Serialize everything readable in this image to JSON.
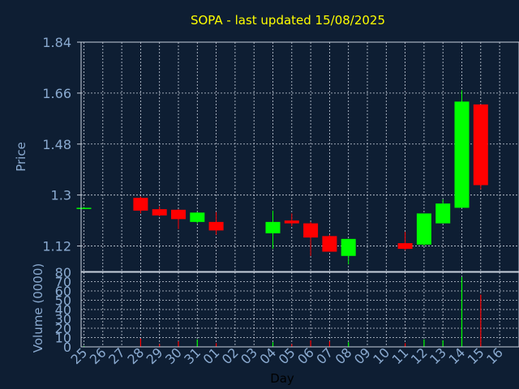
{
  "colors": {
    "background": "#0e1e33",
    "title": "#ffff00",
    "axis_label": "#8aaad0",
    "tick_label": "#8aaad0",
    "grid": "#c8d0dc",
    "frame": "#c8d0dc",
    "up": "#00ff00",
    "down": "#ff0000"
  },
  "chart_data": {
    "type": "candlestick",
    "title": "SOPA - last updated 15/08/2025",
    "xlabel": "Day",
    "ylabel": "Price",
    "volume_label": "Volume (0000)",
    "grid": true,
    "categories": [
      "25",
      "26",
      "27",
      "28",
      "29",
      "30",
      "31",
      "01",
      "02",
      "03",
      "04",
      "05",
      "06",
      "07",
      "08",
      "09",
      "10",
      "11",
      "12",
      "13",
      "14",
      "15",
      "16"
    ],
    "price_axis": {
      "ylim": [
        1.03,
        1.84
      ],
      "ticks": [
        "1.84",
        "1.66",
        "1.48",
        "1.3",
        "1.12"
      ],
      "tick_values": [
        1.84,
        1.66,
        1.48,
        1.3,
        1.12
      ]
    },
    "volume_axis": {
      "ylim": [
        0,
        80
      ],
      "ticks": [
        "80",
        "70",
        "60",
        "50",
        "40",
        "30",
        "20",
        "10",
        "0"
      ],
      "tick_values": [
        80,
        70,
        60,
        50,
        40,
        30,
        20,
        10,
        0
      ]
    },
    "candles": [
      {
        "day": "25",
        "open": 1.255,
        "high": 1.258,
        "low": 1.252,
        "close": 1.255,
        "volume": 1
      },
      {
        "day": "28",
        "open": 1.29,
        "high": 1.295,
        "low": 1.235,
        "close": 1.245,
        "volume": 9
      },
      {
        "day": "29",
        "open": 1.25,
        "high": 1.26,
        "low": 1.225,
        "close": 1.228,
        "volume": 3
      },
      {
        "day": "30",
        "open": 1.248,
        "high": 1.25,
        "low": 1.18,
        "close": 1.215,
        "volume": 6
      },
      {
        "day": "31",
        "open": 1.205,
        "high": 1.24,
        "low": 1.2,
        "close": 1.238,
        "volume": 8
      },
      {
        "day": "01",
        "open": 1.205,
        "high": 1.24,
        "low": 1.16,
        "close": 1.175,
        "volume": 4
      },
      {
        "day": "04",
        "open": 1.165,
        "high": 1.245,
        "low": 1.11,
        "close": 1.205,
        "volume": 5
      },
      {
        "day": "05",
        "open": 1.21,
        "high": 1.235,
        "low": 1.19,
        "close": 1.2,
        "volume": 3
      },
      {
        "day": "06",
        "open": 1.2,
        "high": 1.205,
        "low": 1.085,
        "close": 1.15,
        "volume": 7
      },
      {
        "day": "07",
        "open": 1.155,
        "high": 1.16,
        "low": 1.1,
        "close": 1.1,
        "volume": 6
      },
      {
        "day": "08",
        "open": 1.085,
        "high": 1.145,
        "low": 1.055,
        "close": 1.145,
        "volume": 5
      },
      {
        "day": "11",
        "open": 1.13,
        "high": 1.17,
        "low": 1.105,
        "close": 1.11,
        "volume": 4
      },
      {
        "day": "12",
        "open": 1.125,
        "high": 1.235,
        "low": 1.12,
        "close": 1.235,
        "volume": 8
      },
      {
        "day": "13",
        "open": 1.2,
        "high": 1.285,
        "low": 1.2,
        "close": 1.27,
        "volume": 7
      },
      {
        "day": "14",
        "open": 1.255,
        "high": 1.67,
        "low": 1.255,
        "close": 1.63,
        "volume": 75
      },
      {
        "day": "15",
        "open": 1.62,
        "high": 1.62,
        "low": 1.32,
        "close": 1.335,
        "volume": 56
      }
    ]
  }
}
